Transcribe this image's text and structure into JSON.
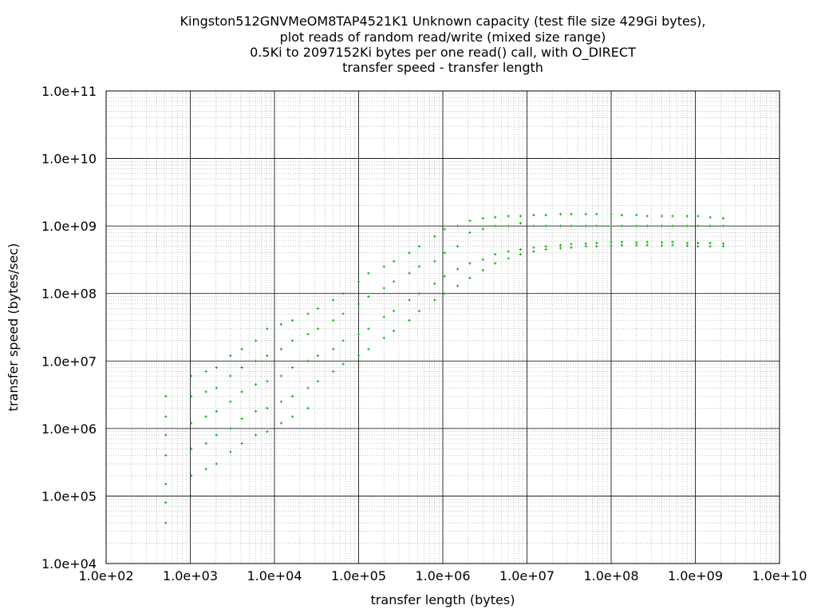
{
  "chart_data": {
    "type": "scatter",
    "title_lines": [
      "Kingston512GNVMeOM8TAP4521K1 Unknown capacity (test file size 429Gi bytes),",
      "plot reads of random read/write (mixed size range)",
      "0.5Ki to 2097152Ki bytes per one read() call, with O_DIRECT",
      "transfer speed - transfer length"
    ],
    "xlabel": "transfer length (bytes)",
    "ylabel": "transfer speed (bytes/sec)",
    "x_scale": "log",
    "y_scale": "log",
    "xlim": [
      100,
      10000000000
    ],
    "ylim": [
      10000,
      100000000000
    ],
    "x_tick_labels": [
      "1.0e+02",
      "1.0e+03",
      "1.0e+04",
      "1.0e+05",
      "1.0e+06",
      "1.0e+07",
      "1.0e+08",
      "1.0e+09",
      "1.0e+10"
    ],
    "y_tick_labels": [
      "1.0e+04",
      "1.0e+05",
      "1.0e+06",
      "1.0e+07",
      "1.0e+08",
      "1.0e+09",
      "1.0e+10",
      "1.0e+11"
    ],
    "grid": true,
    "color": "#00b000",
    "series": [
      {
        "points": [
          [
            512,
            3000000
          ],
          [
            512,
            1500000
          ],
          [
            512,
            800000
          ],
          [
            512,
            400000
          ],
          [
            512,
            150000
          ],
          [
            512,
            80000
          ],
          [
            512,
            40000
          ],
          [
            1024,
            6000000
          ],
          [
            1024,
            3000000
          ],
          [
            1024,
            1200000
          ],
          [
            1024,
            500000
          ],
          [
            1024,
            200000
          ],
          [
            1024,
            100000
          ],
          [
            1536,
            7000000
          ],
          [
            1536,
            3500000
          ],
          [
            1536,
            1500000
          ],
          [
            1536,
            600000
          ],
          [
            1536,
            250000
          ],
          [
            2048,
            8000000
          ],
          [
            2048,
            4000000
          ],
          [
            2048,
            1800000
          ],
          [
            2048,
            800000
          ],
          [
            2048,
            300000
          ],
          [
            3000,
            12000000
          ],
          [
            3000,
            6000000
          ],
          [
            3000,
            2500000
          ],
          [
            3000,
            1000000
          ],
          [
            3000,
            450000
          ],
          [
            4096,
            15000000
          ],
          [
            4096,
            8000000
          ],
          [
            4096,
            3500000
          ],
          [
            4096,
            1400000
          ],
          [
            4096,
            600000
          ],
          [
            6000,
            20000000
          ],
          [
            6000,
            10000000
          ],
          [
            6000,
            4500000
          ],
          [
            6000,
            1800000
          ],
          [
            6000,
            800000
          ],
          [
            8192,
            30000000
          ],
          [
            8192,
            12000000
          ],
          [
            8192,
            5000000
          ],
          [
            8192,
            2000000
          ],
          [
            8192,
            900000
          ],
          [
            12000,
            35000000
          ],
          [
            12000,
            15000000
          ],
          [
            12000,
            6000000
          ],
          [
            12000,
            2500000
          ],
          [
            12000,
            1200000
          ],
          [
            16384,
            40000000
          ],
          [
            16384,
            20000000
          ],
          [
            16384,
            8000000
          ],
          [
            16384,
            3000000
          ],
          [
            16384,
            1500000
          ],
          [
            25000,
            50000000
          ],
          [
            25000,
            25000000
          ],
          [
            25000,
            10000000
          ],
          [
            25000,
            4000000
          ],
          [
            25000,
            2000000
          ],
          [
            32768,
            60000000
          ],
          [
            32768,
            30000000
          ],
          [
            32768,
            12000000
          ],
          [
            32768,
            5000000
          ],
          [
            50000,
            80000000
          ],
          [
            50000,
            40000000
          ],
          [
            50000,
            15000000
          ],
          [
            50000,
            7000000
          ],
          [
            65536,
            100000000
          ],
          [
            65536,
            50000000
          ],
          [
            65536,
            20000000
          ],
          [
            65536,
            9000000
          ],
          [
            100000,
            150000000
          ],
          [
            100000,
            70000000
          ],
          [
            100000,
            25000000
          ],
          [
            100000,
            12000000
          ],
          [
            131072,
            200000000
          ],
          [
            131072,
            90000000
          ],
          [
            131072,
            30000000
          ],
          [
            131072,
            15000000
          ],
          [
            200000,
            250000000
          ],
          [
            200000,
            120000000
          ],
          [
            200000,
            45000000
          ],
          [
            200000,
            22000000
          ],
          [
            262144,
            300000000
          ],
          [
            262144,
            150000000
          ],
          [
            262144,
            55000000
          ],
          [
            262144,
            28000000
          ],
          [
            400000,
            400000000
          ],
          [
            400000,
            200000000
          ],
          [
            400000,
            80000000
          ],
          [
            400000,
            40000000
          ],
          [
            524288,
            500000000
          ],
          [
            524288,
            250000000
          ],
          [
            524288,
            100000000
          ],
          [
            524288,
            55000000
          ],
          [
            800000,
            700000000
          ],
          [
            800000,
            300000000
          ],
          [
            800000,
            140000000
          ],
          [
            800000,
            80000000
          ],
          [
            1048576,
            900000000
          ],
          [
            1048576,
            400000000
          ],
          [
            1048576,
            180000000
          ],
          [
            1048576,
            100000000
          ],
          [
            1500000,
            1000000000
          ],
          [
            1500000,
            500000000
          ],
          [
            1500000,
            230000000
          ],
          [
            1500000,
            130000000
          ],
          [
            2097152,
            1200000000
          ],
          [
            2097152,
            800000000
          ],
          [
            2097152,
            280000000
          ],
          [
            2097152,
            170000000
          ],
          [
            3000000,
            1300000000
          ],
          [
            3000000,
            900000000
          ],
          [
            3000000,
            320000000
          ],
          [
            3000000,
            220000000
          ],
          [
            4194304,
            1350000000
          ],
          [
            4194304,
            1000000000
          ],
          [
            4194304,
            380000000
          ],
          [
            4194304,
            280000000
          ],
          [
            6000000,
            1400000000
          ],
          [
            6000000,
            1000000000
          ],
          [
            6000000,
            420000000
          ],
          [
            6000000,
            330000000
          ],
          [
            8388608,
            1400000000
          ],
          [
            8388608,
            1100000000
          ],
          [
            8388608,
            450000000
          ],
          [
            8388608,
            380000000
          ],
          [
            12000000,
            1450000000
          ],
          [
            12000000,
            1000000000
          ],
          [
            12000000,
            480000000
          ],
          [
            12000000,
            420000000
          ],
          [
            16777216,
            1450000000
          ],
          [
            16777216,
            1000000000
          ],
          [
            16777216,
            500000000
          ],
          [
            16777216,
            450000000
          ],
          [
            25000000,
            1500000000
          ],
          [
            25000000,
            1000000000
          ],
          [
            25000000,
            520000000
          ],
          [
            25000000,
            470000000
          ],
          [
            33554432,
            1500000000
          ],
          [
            33554432,
            1000000000
          ],
          [
            33554432,
            540000000
          ],
          [
            33554432,
            480000000
          ],
          [
            50000000,
            1500000000
          ],
          [
            50000000,
            1000000000
          ],
          [
            50000000,
            550000000
          ],
          [
            50000000,
            500000000
          ],
          [
            67108864,
            1500000000
          ],
          [
            67108864,
            1000000000
          ],
          [
            67108864,
            560000000
          ],
          [
            67108864,
            500000000
          ],
          [
            100000000,
            1500000000
          ],
          [
            100000000,
            1000000000
          ],
          [
            100000000,
            580000000
          ],
          [
            100000000,
            510000000
          ],
          [
            134217728,
            1450000000
          ],
          [
            134217728,
            1000000000
          ],
          [
            134217728,
            580000000
          ],
          [
            134217728,
            520000000
          ],
          [
            200000000,
            1450000000
          ],
          [
            200000000,
            1000000000
          ],
          [
            200000000,
            570000000
          ],
          [
            200000000,
            520000000
          ],
          [
            268435456,
            1400000000
          ],
          [
            268435456,
            1000000000
          ],
          [
            268435456,
            580000000
          ],
          [
            268435456,
            520000000
          ],
          [
            400000000,
            1400000000
          ],
          [
            400000000,
            1000000000
          ],
          [
            400000000,
            570000000
          ],
          [
            400000000,
            510000000
          ],
          [
            536870912,
            1400000000
          ],
          [
            536870912,
            1000000000
          ],
          [
            536870912,
            580000000
          ],
          [
            536870912,
            520000000
          ],
          [
            800000000,
            1400000000
          ],
          [
            800000000,
            1000000000
          ],
          [
            800000000,
            560000000
          ],
          [
            800000000,
            510000000
          ],
          [
            1073741824,
            1400000000
          ],
          [
            1073741824,
            1000000000
          ],
          [
            1073741824,
            560000000
          ],
          [
            1073741824,
            500000000
          ],
          [
            1500000000,
            1350000000
          ],
          [
            1500000000,
            1000000000
          ],
          [
            1500000000,
            560000000
          ],
          [
            1500000000,
            500000000
          ],
          [
            2147483648,
            1300000000
          ],
          [
            2147483648,
            1000000000
          ],
          [
            2147483648,
            550000000
          ],
          [
            2147483648,
            500000000
          ]
        ]
      }
    ]
  }
}
